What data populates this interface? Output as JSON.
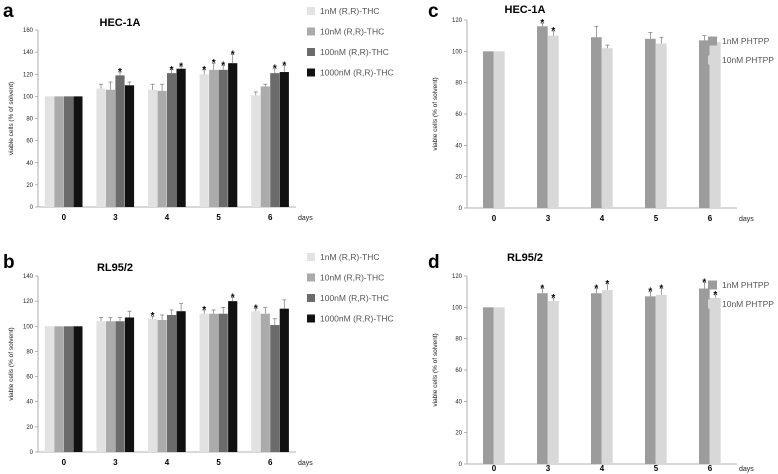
{
  "chart_data": [
    {
      "panel": "a",
      "type": "bar",
      "title": "HEC-1A",
      "ylabel": "viable cells (% of solvent)",
      "xlabel": "days",
      "ylim": [
        0,
        160
      ],
      "yticks": [
        0,
        20,
        40,
        60,
        80,
        100,
        120,
        140,
        160
      ],
      "categories": [
        "0",
        "3",
        "4",
        "5",
        "6"
      ],
      "series": [
        {
          "name": "1nM (R,R)-THC",
          "color": "#e2e2e2",
          "values": [
            100,
            107,
            106,
            120,
            101
          ],
          "errors": [
            0,
            4,
            5,
            4,
            3
          ],
          "sig": [
            false,
            false,
            false,
            true,
            false
          ]
        },
        {
          "name": "10nM (R,R)-THC",
          "color": "#ababab",
          "values": [
            100,
            106,
            105,
            124,
            109
          ],
          "errors": [
            0,
            7,
            6,
            6,
            2
          ],
          "sig": [
            false,
            false,
            false,
            true,
            false
          ]
        },
        {
          "name": "100nM (R,R)-THC",
          "color": "#6b6b6b",
          "values": [
            100,
            119,
            121,
            124,
            121
          ],
          "errors": [
            0,
            3,
            3,
            4,
            4
          ],
          "sig": [
            false,
            true,
            true,
            true,
            true
          ]
        },
        {
          "name": "1000nM (R,R)-THC",
          "color": "#111111",
          "values": [
            100,
            110,
            125,
            130,
            122
          ],
          "errors": [
            0,
            3,
            2,
            8,
            6
          ],
          "sig": [
            false,
            false,
            true,
            true,
            true
          ]
        }
      ]
    },
    {
      "panel": "b",
      "type": "bar",
      "title": "RL95/2",
      "ylabel": "viable cells (% of solvent)",
      "xlabel": "days",
      "ylim": [
        0,
        140
      ],
      "yticks": [
        0,
        20,
        40,
        60,
        80,
        100,
        120,
        140
      ],
      "categories": [
        "0",
        "3",
        "4",
        "5",
        "6"
      ],
      "series": [
        {
          "name": "1nM (R,R)-THC",
          "color": "#e2e2e2",
          "values": [
            100,
            104,
            106,
            110,
            112
          ],
          "errors": [
            0,
            3,
            2,
            3,
            2
          ],
          "sig": [
            false,
            false,
            true,
            true,
            true
          ]
        },
        {
          "name": "10nM (R,R)-THC",
          "color": "#ababab",
          "values": [
            100,
            104,
            105,
            110,
            110
          ],
          "errors": [
            0,
            3,
            4,
            3,
            5
          ],
          "sig": [
            false,
            false,
            false,
            false,
            false
          ]
        },
        {
          "name": "100nM (R,R)-THC",
          "color": "#6b6b6b",
          "values": [
            100,
            104,
            109,
            110,
            101
          ],
          "errors": [
            0,
            3,
            4,
            5,
            5
          ],
          "sig": [
            false,
            false,
            false,
            false,
            false
          ]
        },
        {
          "name": "1000nM (R,R)-THC",
          "color": "#111111",
          "values": [
            100,
            107,
            112,
            120,
            114
          ],
          "errors": [
            0,
            5,
            6,
            3,
            7
          ],
          "sig": [
            false,
            false,
            false,
            true,
            false
          ]
        }
      ]
    },
    {
      "panel": "c",
      "type": "bar",
      "title": "HEC-1A",
      "ylabel": "viable cells (% of solvent)",
      "xlabel": "days",
      "ylim": [
        0,
        120
      ],
      "yticks": [
        0,
        20,
        40,
        60,
        80,
        100,
        120
      ],
      "categories": [
        "0",
        "3",
        "4",
        "5",
        "6"
      ],
      "series": [
        {
          "name": "1nM PHTPP",
          "color": "#9c9c9c",
          "values": [
            100,
            116,
            109,
            108,
            107
          ],
          "errors": [
            0,
            2,
            7,
            4,
            3
          ],
          "sig": [
            false,
            true,
            false,
            false,
            false
          ]
        },
        {
          "name": "10nM PHTPP",
          "color": "#d8d8d8",
          "values": [
            100,
            110,
            102,
            105,
            106
          ],
          "errors": [
            0,
            3,
            2,
            4,
            3
          ],
          "sig": [
            false,
            true,
            false,
            false,
            false
          ]
        }
      ]
    },
    {
      "panel": "d",
      "type": "bar",
      "title": "RL95/2",
      "ylabel": "viable cells (% of solvent)",
      "xlabel": "days",
      "ylim": [
        0,
        120
      ],
      "yticks": [
        0,
        20,
        40,
        60,
        80,
        100,
        120
      ],
      "categories": [
        "0",
        "3",
        "4",
        "5",
        "6"
      ],
      "series": [
        {
          "name": "1nM PHTPP",
          "color": "#9c9c9c",
          "values": [
            100,
            109,
            109,
            107,
            112
          ],
          "errors": [
            0,
            3,
            3,
            3,
            4
          ],
          "sig": [
            false,
            true,
            true,
            true,
            true
          ]
        },
        {
          "name": "10nM PHTPP",
          "color": "#d8d8d8",
          "values": [
            100,
            104,
            111,
            108,
            106
          ],
          "errors": [
            0,
            2,
            4,
            4,
            2
          ],
          "sig": [
            false,
            true,
            true,
            true,
            true
          ]
        }
      ]
    }
  ]
}
